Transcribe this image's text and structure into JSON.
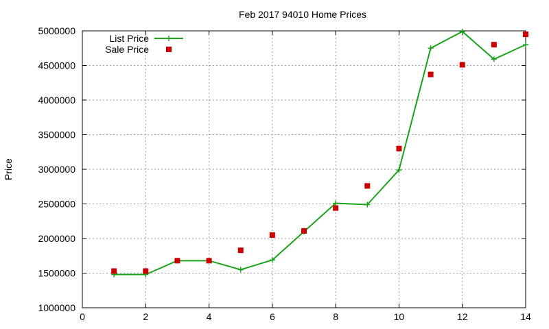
{
  "chart_data": {
    "type": "line",
    "title": "Feb 2017 94010 Home Prices",
    "xlabel": "",
    "ylabel": "Price",
    "xlim": [
      0,
      14
    ],
    "ylim": [
      1000000,
      5000000
    ],
    "xticks": [
      0,
      2,
      4,
      6,
      8,
      10,
      12,
      14
    ],
    "yticks": [
      1000000,
      1500000,
      2000000,
      2500000,
      3000000,
      3500000,
      4000000,
      4500000,
      5000000
    ],
    "grid": true,
    "legend_position": "top-left",
    "series": [
      {
        "name": "List Price",
        "style": "line-with-plus-markers",
        "color": "#1aa31a",
        "x": [
          1,
          2,
          3,
          4,
          5,
          6,
          7,
          8,
          9,
          10,
          11,
          12,
          13,
          14
        ],
        "y": [
          1480000,
          1480000,
          1680000,
          1680000,
          1550000,
          1690000,
          2100000,
          2510000,
          2490000,
          2990000,
          4750000,
          4990000,
          4590000,
          4800000
        ]
      },
      {
        "name": "Sale Price",
        "style": "square-markers",
        "color": "#cc0000",
        "x": [
          1,
          2,
          3,
          4,
          5,
          6,
          7,
          8,
          9,
          10,
          11,
          12,
          13,
          14
        ],
        "y": [
          1530000,
          1530000,
          1680000,
          1680000,
          1830000,
          2050000,
          2110000,
          2440000,
          2760000,
          3300000,
          4370000,
          4510000,
          4800000,
          4950000
        ]
      }
    ]
  }
}
